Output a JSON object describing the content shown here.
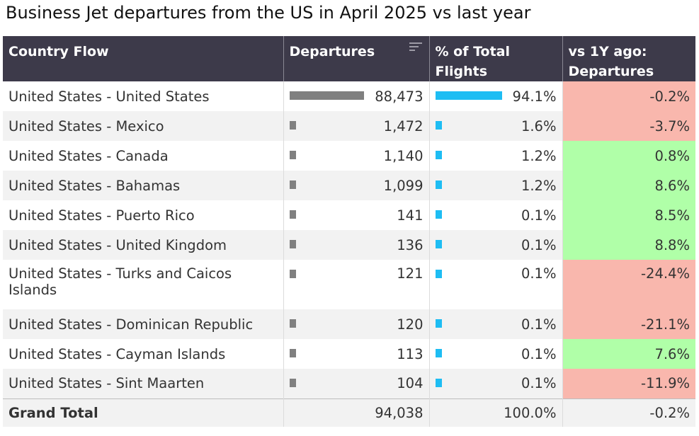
{
  "title": "Business Jet departures from the US in April 2025 vs last year",
  "headers": {
    "country_flow": "Country Flow",
    "departures": "Departures",
    "pct_total": "% of Total Flights",
    "vs_1y": "vs 1Y ago: Departures"
  },
  "colors": {
    "header_bg": "#3d3a4a",
    "departures_bar": "#808080",
    "pct_bar": "#1ebdf3",
    "positive_bg": "#b0ffa8",
    "negative_bg": "#f9b7ad"
  },
  "chart_data": {
    "type": "table",
    "columns": [
      "Country Flow",
      "Departures",
      "% of Total Flights",
      "vs 1Y ago: Departures"
    ],
    "rows": [
      {
        "country_flow": "United States - United States",
        "departures": 88473,
        "departures_label": "88,473",
        "pct_total": 94.1,
        "pct_label": "94.1%",
        "vs_1y": -0.2,
        "vs_1y_label": "-0.2%"
      },
      {
        "country_flow": "United States - Mexico",
        "departures": 1472,
        "departures_label": "1,472",
        "pct_total": 1.6,
        "pct_label": "1.6%",
        "vs_1y": -3.7,
        "vs_1y_label": "-3.7%"
      },
      {
        "country_flow": "United States - Canada",
        "departures": 1140,
        "departures_label": "1,140",
        "pct_total": 1.2,
        "pct_label": "1.2%",
        "vs_1y": 0.8,
        "vs_1y_label": "0.8%"
      },
      {
        "country_flow": "United States - Bahamas",
        "departures": 1099,
        "departures_label": "1,099",
        "pct_total": 1.2,
        "pct_label": "1.2%",
        "vs_1y": 8.6,
        "vs_1y_label": "8.6%"
      },
      {
        "country_flow": "United States - Puerto Rico",
        "departures": 141,
        "departures_label": "141",
        "pct_total": 0.1,
        "pct_label": "0.1%",
        "vs_1y": 8.5,
        "vs_1y_label": "8.5%"
      },
      {
        "country_flow": "United States - United Kingdom",
        "departures": 136,
        "departures_label": "136",
        "pct_total": 0.1,
        "pct_label": "0.1%",
        "vs_1y": 8.8,
        "vs_1y_label": "8.8%"
      },
      {
        "country_flow": "United States - Turks and Caicos Islands",
        "departures": 121,
        "departures_label": "121",
        "pct_total": 0.1,
        "pct_label": "0.1%",
        "vs_1y": -24.4,
        "vs_1y_label": "-24.4%"
      },
      {
        "country_flow": "United States - Dominican Republic",
        "departures": 120,
        "departures_label": "120",
        "pct_total": 0.1,
        "pct_label": "0.1%",
        "vs_1y": -21.1,
        "vs_1y_label": "-21.1%"
      },
      {
        "country_flow": "United States - Cayman Islands",
        "departures": 113,
        "departures_label": "113",
        "pct_total": 0.1,
        "pct_label": "0.1%",
        "vs_1y": 7.6,
        "vs_1y_label": "7.6%"
      },
      {
        "country_flow": "United States - Sint Maarten",
        "departures": 104,
        "departures_label": "104",
        "pct_total": 0.1,
        "pct_label": "0.1%",
        "vs_1y": -11.9,
        "vs_1y_label": "-11.9%"
      }
    ],
    "grand_total": {
      "label": "Grand Total",
      "departures_label": "94,038",
      "pct_label": "100.0%",
      "vs_1y_label": "-0.2%"
    }
  }
}
